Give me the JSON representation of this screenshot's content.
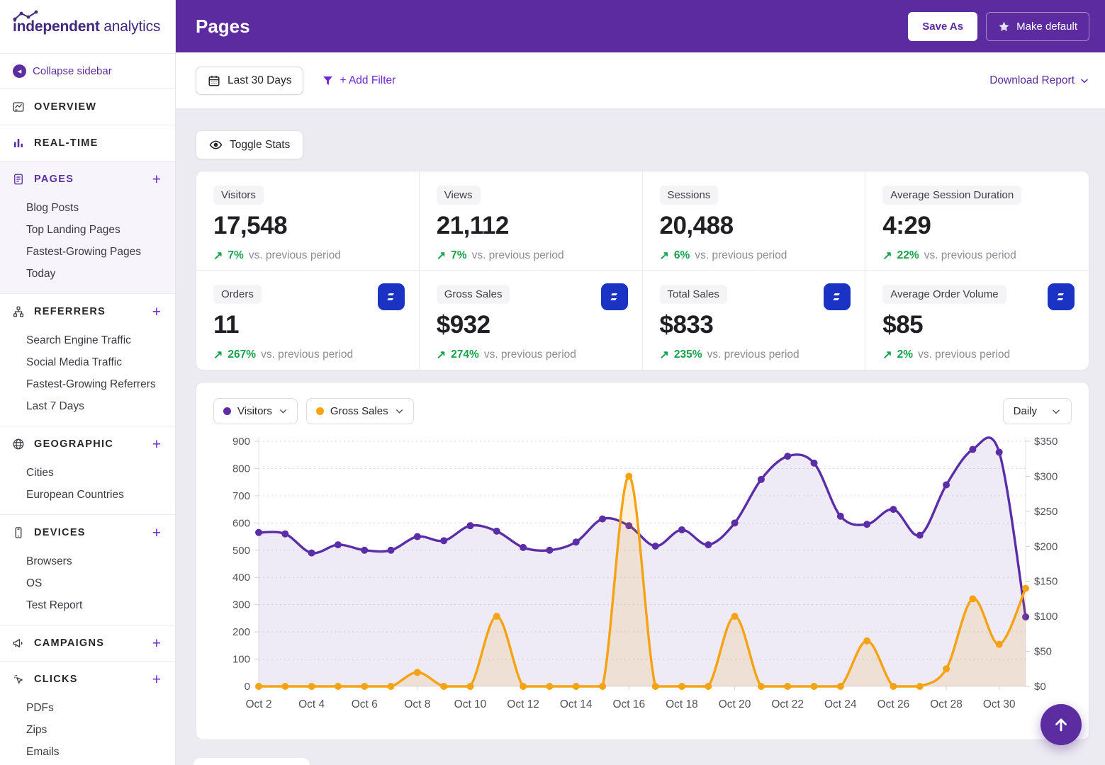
{
  "colors": {
    "header_purple": "#5b2b9f",
    "accent_purple": "#5b2da1",
    "link_purple": "#6d28d9",
    "visitors_line": "#5b2da8",
    "sales_line": "#f5a313",
    "positive_green": "#15a24a",
    "ecom_icon_blue": "#1b33c4",
    "background": "#edebf2"
  },
  "sidebar": {
    "logo": {
      "bold": "independent",
      "regular": " analytics"
    },
    "collapse_label": "Collapse sidebar",
    "sections": [
      {
        "label": "OVERVIEW",
        "icon": "overview-icon",
        "plus": false,
        "active": false,
        "icon_purple": false,
        "items": []
      },
      {
        "label": "REAL-TIME",
        "icon": "realtime-icon",
        "plus": false,
        "active": false,
        "icon_purple": true,
        "items": []
      },
      {
        "label": "PAGES",
        "icon": "pages-icon",
        "plus": true,
        "active": true,
        "icon_purple": true,
        "items": [
          "Blog Posts",
          "Top Landing Pages",
          "Fastest-Growing Pages",
          "Today"
        ]
      },
      {
        "label": "REFERRERS",
        "icon": "referrers-icon",
        "plus": true,
        "active": false,
        "icon_purple": false,
        "items": [
          "Search Engine Traffic",
          "Social Media Traffic",
          "Fastest-Growing Referrers",
          "Last 7 Days"
        ]
      },
      {
        "label": "GEOGRAPHIC",
        "icon": "geographic-icon",
        "plus": true,
        "active": false,
        "icon_purple": false,
        "items": [
          "Cities",
          "European Countries"
        ]
      },
      {
        "label": "DEVICES",
        "icon": "devices-icon",
        "plus": true,
        "active": false,
        "icon_purple": false,
        "items": [
          "Browsers",
          "OS",
          "Test Report"
        ]
      },
      {
        "label": "CAMPAIGNS",
        "icon": "campaigns-icon",
        "plus": true,
        "active": false,
        "icon_purple": false,
        "items": []
      },
      {
        "label": "CLICKS",
        "icon": "clicks-icon",
        "plus": true,
        "active": false,
        "icon_purple": false,
        "items": [
          "PDFs",
          "Zips",
          "Emails"
        ]
      }
    ]
  },
  "header": {
    "title": "Pages",
    "save_as_label": "Save As",
    "make_default_label": "Make default"
  },
  "toolbar": {
    "date_range_label": "Last 30 Days",
    "add_filter_label": "+ Add Filter",
    "download_label": "Download Report"
  },
  "stats": {
    "toggle_label": "Toggle Stats",
    "trend_suffix": "vs. previous period",
    "cards": [
      {
        "label": "Visitors",
        "value": "17,548",
        "change": "7%",
        "ecom_icon": false
      },
      {
        "label": "Views",
        "value": "21,112",
        "change": "7%",
        "ecom_icon": false
      },
      {
        "label": "Sessions",
        "value": "20,488",
        "change": "6%",
        "ecom_icon": false
      },
      {
        "label": "Average Session Duration",
        "value": "4:29",
        "change": "22%",
        "ecom_icon": false
      },
      {
        "label": "Orders",
        "value": "11",
        "change": "267%",
        "ecom_icon": true
      },
      {
        "label": "Gross Sales",
        "value": "$932",
        "change": "274%",
        "ecom_icon": true
      },
      {
        "label": "Total Sales",
        "value": "$833",
        "change": "235%",
        "ecom_icon": true
      },
      {
        "label": "Average Order Volume",
        "value": "$85",
        "change": "2%",
        "ecom_icon": true
      }
    ]
  },
  "chart_controls": {
    "series_pickers": [
      {
        "label": "Visitors",
        "dot_color": "#5b2da8"
      },
      {
        "label": "Gross Sales",
        "dot_color": "#f5a313"
      }
    ],
    "interval_label": "Daily"
  },
  "chart_data": {
    "type": "line",
    "title": "",
    "x": [
      "Oct 2",
      "Oct 3",
      "Oct 4",
      "Oct 5",
      "Oct 6",
      "Oct 7",
      "Oct 8",
      "Oct 9",
      "Oct 10",
      "Oct 11",
      "Oct 12",
      "Oct 13",
      "Oct 14",
      "Oct 15",
      "Oct 16",
      "Oct 17",
      "Oct 18",
      "Oct 19",
      "Oct 20",
      "Oct 21",
      "Oct 22",
      "Oct 23",
      "Oct 24",
      "Oct 25",
      "Oct 26",
      "Oct 27",
      "Oct 28",
      "Oct 29",
      "Oct 30",
      "Oct 31"
    ],
    "x_label_every": 2,
    "series": [
      {
        "name": "Visitors",
        "axis": "left",
        "color": "#5b2da8",
        "fill_opacity": 0.1,
        "values": [
          565,
          560,
          490,
          520,
          500,
          500,
          550,
          535,
          590,
          570,
          510,
          500,
          530,
          615,
          590,
          515,
          575,
          520,
          600,
          760,
          845,
          820,
          625,
          595,
          650,
          555,
          740,
          870,
          860,
          255
        ]
      },
      {
        "name": "Gross Sales",
        "axis": "right",
        "color": "#f5a313",
        "fill_opacity": 0.14,
        "values": [
          0,
          0,
          0,
          0,
          0,
          0,
          20,
          0,
          0,
          100,
          0,
          0,
          0,
          0,
          300,
          0,
          0,
          0,
          100,
          0,
          0,
          0,
          0,
          65,
          0,
          0,
          25,
          125,
          60,
          140
        ]
      }
    ],
    "left_axis": {
      "min": 0,
      "max": 900,
      "step": 100,
      "prefix": ""
    },
    "right_axis": {
      "min": 0,
      "max": 350,
      "step": 50,
      "prefix": "$"
    },
    "grid": "dotted-horizontal",
    "legend_position": "top-left-dropdowns"
  }
}
